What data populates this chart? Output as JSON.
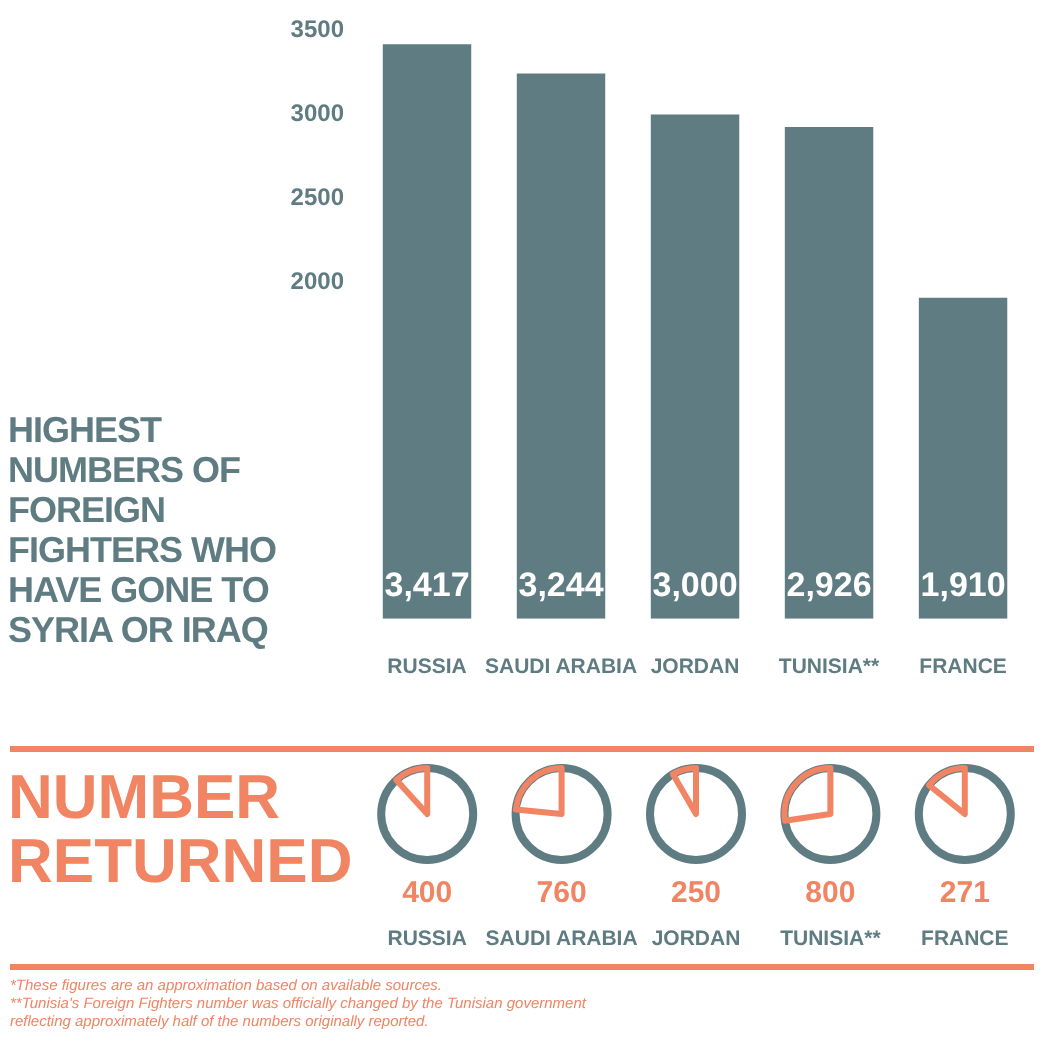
{
  "chart_data": [
    {
      "type": "bar",
      "title": "HIGHEST NUMBERS OF FOREIGN FIGHTERS WHO HAVE GONE TO SYRIA OR IRAQ",
      "categories": [
        "RUSSIA",
        "SAUDI ARABIA",
        "JORDAN",
        "TUNISIA**",
        "FRANCE"
      ],
      "values": [
        3417,
        3244,
        3000,
        2926,
        1910
      ],
      "value_labels": [
        "3,417",
        "3,244",
        "3,000",
        "2,926",
        "1,910"
      ],
      "color": "#5f7c82",
      "ylim": [
        0,
        3500
      ],
      "yticks": [
        2000,
        2500,
        3000,
        3500
      ],
      "grid": false,
      "legend": false
    },
    {
      "type": "other",
      "title": "NUMBER RETURNED",
      "categories": [
        "RUSSIA",
        "SAUDI ARABIA",
        "JORDAN",
        "TUNISIA**",
        "FRANCE"
      ],
      "values": [
        400,
        760,
        250,
        800,
        271
      ],
      "data_labels": true,
      "colors": [
        "#f08463",
        "#f08463",
        "#f08463",
        "#f08463",
        "#f08463"
      ],
      "annotations": [
        "*These figures are an approximation based on available sources.",
        "**Tunisia's Foreign Fighters number was officially changed by the Tunisian government reflecting approximately half of the numbers originally reported."
      ]
    }
  ]
}
